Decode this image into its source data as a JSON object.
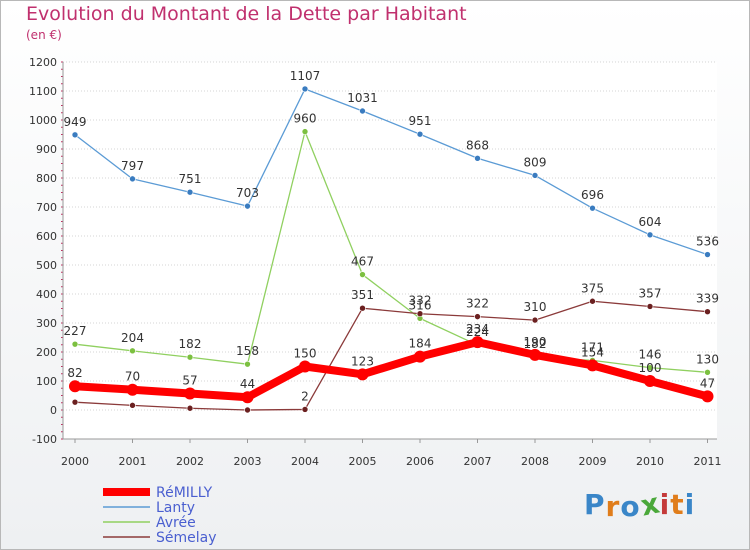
{
  "header": {
    "title": "Evolution du Montant de la Dette par Habitant",
    "subtitle": "(en €)"
  },
  "logo": {
    "text": "Proxiti",
    "letters": [
      "P",
      "r",
      "o",
      "x",
      "i",
      "t",
      "i"
    ],
    "colors": [
      "#3a86c8",
      "#e07d1b",
      "#3a86c8",
      "#4aa83a",
      "#c43a3a",
      "#e07d1b",
      "#3a86c8"
    ]
  },
  "chart_data": {
    "type": "line",
    "title": "Evolution du Montant de la Dette par Habitant",
    "subtitle": "(en €)",
    "xlabel": "",
    "ylabel": "",
    "ylim": [
      -100,
      1200
    ],
    "yticks": [
      -100,
      0,
      100,
      200,
      300,
      400,
      500,
      600,
      700,
      800,
      900,
      1000,
      1100,
      1200
    ],
    "categories": [
      "2000",
      "2001",
      "2002",
      "2003",
      "2004",
      "2005",
      "2006",
      "2007",
      "2008",
      "2009",
      "2010",
      "2011"
    ],
    "grid": true,
    "legend_position": "bottom-left",
    "series": [
      {
        "name": "Lanty",
        "color": "#5b9bd5",
        "marker_color": "#3a7cc0",
        "values": [
          949,
          797,
          751,
          703,
          1107,
          1031,
          951,
          868,
          809,
          696,
          604,
          536
        ]
      },
      {
        "name": "Avrée",
        "color": "#90d060",
        "marker_color": "#7cc040",
        "values": [
          227,
          204,
          182,
          158,
          960,
          467,
          316,
          224,
          182,
          171,
          146,
          130
        ]
      },
      {
        "name": "Sémelay",
        "color": "#8b3a3a",
        "marker_color": "#6b2020",
        "values": [
          27,
          16,
          6,
          0,
          2,
          351,
          332,
          322,
          310,
          375,
          357,
          339
        ]
      },
      {
        "name": "RéMILLY",
        "color": "#ff0000",
        "marker_color": "#ff0000",
        "values": [
          82,
          70,
          57,
          44,
          150,
          123,
          184,
          234,
          190,
          154,
          100,
          47
        ],
        "emphasis": true
      }
    ],
    "value_labels": [
      {
        "text": "949",
        "x": "2000",
        "y": 949
      },
      {
        "text": "797",
        "x": "2001",
        "y": 797
      },
      {
        "text": "751",
        "x": "2002",
        "y": 751
      },
      {
        "text": "703",
        "x": "2003",
        "y": 703
      },
      {
        "text": "1107",
        "x": "2004",
        "y": 1107
      },
      {
        "text": "1031",
        "x": "2005",
        "y": 1031
      },
      {
        "text": "951",
        "x": "2006",
        "y": 951
      },
      {
        "text": "868",
        "x": "2007",
        "y": 868
      },
      {
        "text": "809",
        "x": "2008",
        "y": 809
      },
      {
        "text": "696",
        "x": "2009",
        "y": 696
      },
      {
        "text": "604",
        "x": "2010",
        "y": 604
      },
      {
        "text": "536",
        "x": "2011",
        "y": 536
      },
      {
        "text": "227",
        "x": "2000",
        "y": 227
      },
      {
        "text": "204",
        "x": "2001",
        "y": 204
      },
      {
        "text": "182",
        "x": "2002",
        "y": 182
      },
      {
        "text": "158",
        "x": "2003",
        "y": 158
      },
      {
        "text": "960",
        "x": "2004",
        "y": 960
      },
      {
        "text": "467",
        "x": "2005",
        "y": 467
      },
      {
        "text": "316",
        "x": "2006",
        "y": 316
      },
      {
        "text": "224",
        "x": "2007",
        "y": 224
      },
      {
        "text": "182",
        "x": "2008",
        "y": 182
      },
      {
        "text": "171",
        "x": "2009",
        "y": 171
      },
      {
        "text": "146",
        "x": "2010",
        "y": 146
      },
      {
        "text": "130",
        "x": "2011",
        "y": 130
      },
      {
        "text": "351",
        "x": "2005",
        "y": 351
      },
      {
        "text": "332",
        "x": "2006",
        "y": 332
      },
      {
        "text": "322",
        "x": "2007",
        "y": 322
      },
      {
        "text": "310",
        "x": "2008",
        "y": 310
      },
      {
        "text": "375",
        "x": "2009",
        "y": 375
      },
      {
        "text": "357",
        "x": "2010",
        "y": 357
      },
      {
        "text": "339",
        "x": "2011",
        "y": 339
      },
      {
        "text": "2",
        "x": "2004",
        "y": 2
      },
      {
        "text": "82",
        "x": "2000",
        "y": 82
      },
      {
        "text": "70",
        "x": "2001",
        "y": 70
      },
      {
        "text": "57",
        "x": "2002",
        "y": 57
      },
      {
        "text": "44",
        "x": "2003",
        "y": 44
      },
      {
        "text": "150",
        "x": "2004",
        "y": 150
      },
      {
        "text": "123",
        "x": "2005",
        "y": 123
      },
      {
        "text": "184",
        "x": "2006",
        "y": 184
      },
      {
        "text": "234",
        "x": "2007",
        "y": 234
      },
      {
        "text": "190",
        "x": "2008",
        "y": 190
      },
      {
        "text": "154",
        "x": "2009",
        "y": 154
      },
      {
        "text": "100",
        "x": "2010",
        "y": 100
      },
      {
        "text": "47",
        "x": "2011",
        "y": 47
      }
    ],
    "legend": [
      "RéMILLY",
      "Lanty",
      "Avrée",
      "Sémelay"
    ]
  }
}
